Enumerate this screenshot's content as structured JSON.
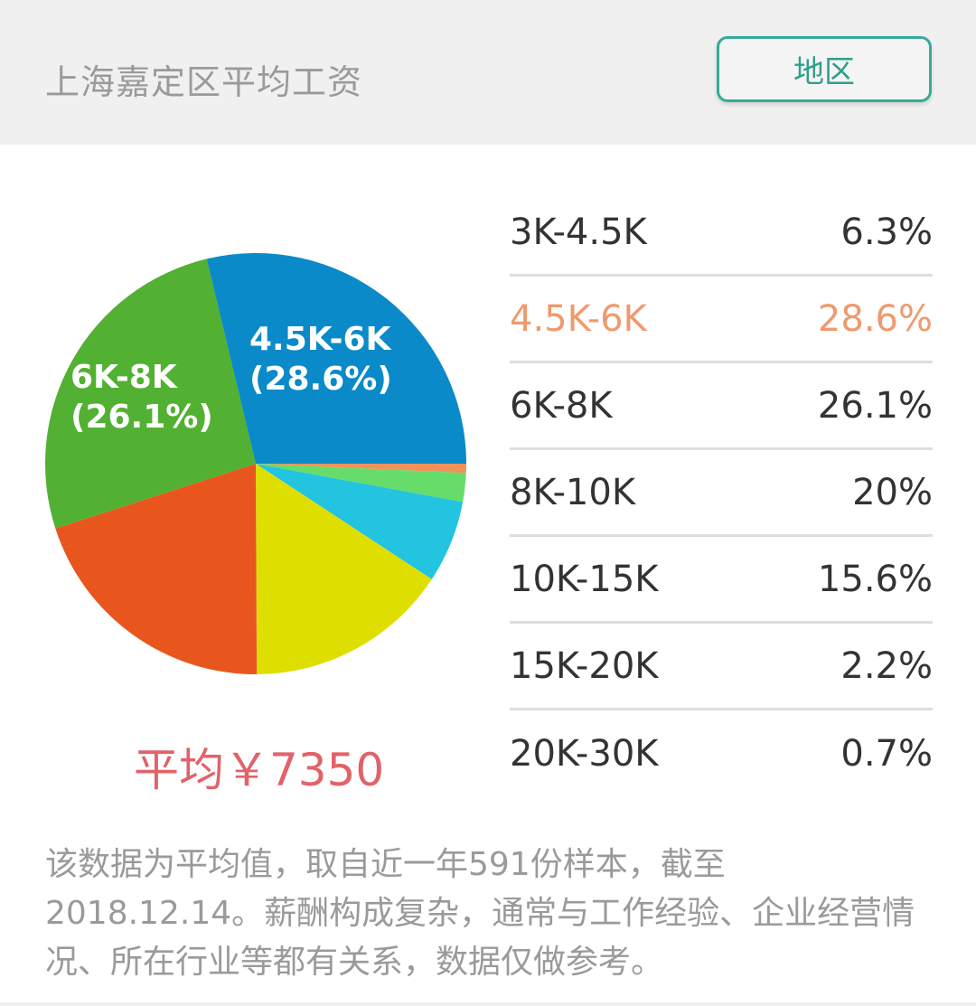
{
  "header": {
    "title": "上海嘉定区平均工资",
    "region_button_label": "地区"
  },
  "pie": {
    "labels": [
      {
        "line1": "4.5K-6K",
        "line2": "(28.6%)"
      },
      {
        "line1": "6K-8K",
        "line2": "(26.1%)"
      }
    ]
  },
  "average": "平均￥7350",
  "legend": {
    "rows": [
      {
        "range": "3K-4.5K",
        "percent": "6.3%",
        "highlighted": false
      },
      {
        "range": "4.5K-6K",
        "percent": "28.6%",
        "highlighted": true
      },
      {
        "range": "6K-8K",
        "percent": "26.1%",
        "highlighted": false
      },
      {
        "range": "8K-10K",
        "percent": "20%",
        "highlighted": false
      },
      {
        "range": "10K-15K",
        "percent": "15.6%",
        "highlighted": false
      },
      {
        "range": "15K-20K",
        "percent": "2.2%",
        "highlighted": false
      },
      {
        "range": "20K-30K",
        "percent": "0.7%",
        "highlighted": false
      }
    ],
    "highlight_color": "#ef9a6e"
  },
  "note": "该数据为平均值，取自近一年591份样本，截至2018.12.14。薪酬构成复杂，通常与工作经验、企业经营情况、所在行业等都有关系，数据仅做参考。",
  "chart_data": {
    "type": "pie",
    "title": "上海嘉定区平均工资",
    "categories": [
      "3K-4.5K",
      "4.5K-6K",
      "6K-8K",
      "8K-10K",
      "10K-15K",
      "15K-20K",
      "20K-30K"
    ],
    "values": [
      6.3,
      28.6,
      26.1,
      20,
      15.6,
      2.2,
      0.7
    ],
    "unit": "%",
    "average_salary": 7350,
    "sample_size": 591,
    "as_of": "2018.12.14",
    "slices_clockwise_from_3_oclock": [
      {
        "category": "20K-30K",
        "value": 0.7,
        "color": "#f0925a"
      },
      {
        "category": "15K-20K",
        "value": 2.2,
        "color": "#66dd6a"
      },
      {
        "category": "3K-4.5K",
        "value": 6.3,
        "color": "#22c4e0"
      },
      {
        "category": "10K-15K",
        "value": 15.6,
        "color": "#dedf00"
      },
      {
        "category": "8K-10K",
        "value": 20,
        "color": "#e8561e"
      },
      {
        "category": "6K-8K",
        "value": 26.1,
        "color": "#52b132"
      },
      {
        "category": "4.5K-6K",
        "value": 28.6,
        "color": "#0a8ac8"
      }
    ],
    "slice_labels_shown": [
      "4.5K-6K (28.6%)",
      "6K-8K (26.1%)"
    ],
    "legend_position": "right"
  }
}
